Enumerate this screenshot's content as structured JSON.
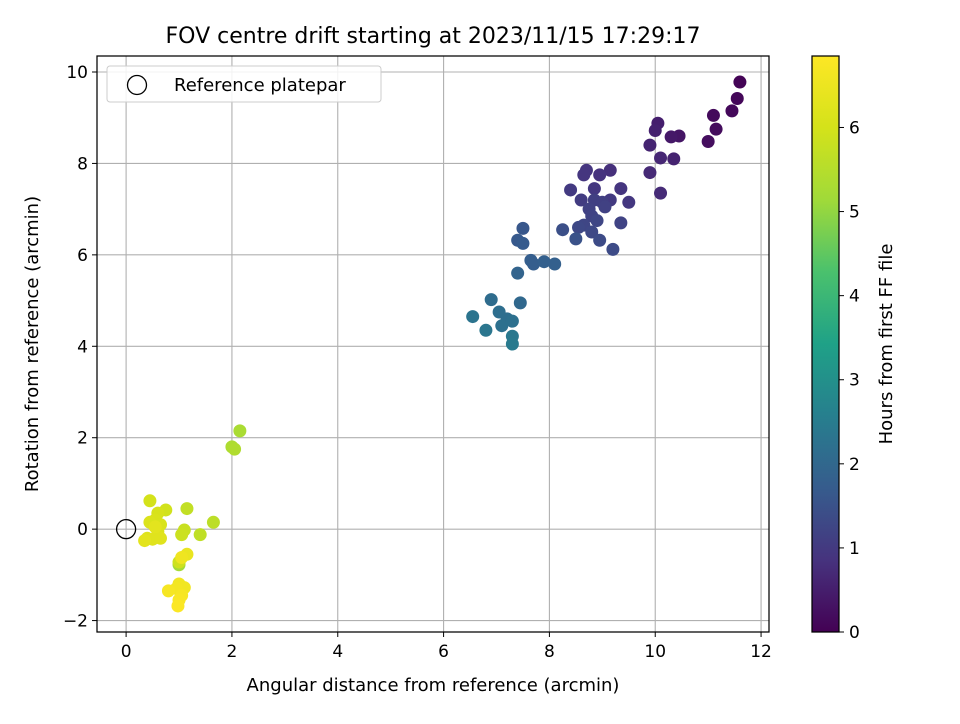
{
  "chart_data": {
    "type": "scatter",
    "title": "FOV centre drift starting at 2023/11/15 17:29:17",
    "xlabel": "Angular distance from reference (arcmin)",
    "ylabel": "Rotation from reference (arcmin)",
    "xlim": [
      -0.55,
      12.15
    ],
    "ylim": [
      -2.25,
      10.35
    ],
    "xticks": [
      0,
      2,
      4,
      6,
      8,
      10,
      12
    ],
    "yticks": [
      -2,
      0,
      2,
      4,
      6,
      8,
      10
    ],
    "grid": true,
    "legend": {
      "placement": "upper-left",
      "entries": [
        "Reference platepar"
      ]
    },
    "reference": {
      "x": 0,
      "y": 0,
      "label": "Reference platepar"
    },
    "colorbar": {
      "label": "Hours from first FF file",
      "range": [
        0,
        6.85
      ],
      "ticks": [
        0,
        1,
        2,
        3,
        4,
        5,
        6
      ],
      "colormap": "viridis"
    },
    "points": [
      [
        11.6,
        9.78,
        0.05
      ],
      [
        11.55,
        9.42,
        0.1
      ],
      [
        11.45,
        9.15,
        0.12
      ],
      [
        11.1,
        9.05,
        0.15
      ],
      [
        11.15,
        8.75,
        0.18
      ],
      [
        11.0,
        8.48,
        0.22
      ],
      [
        10.45,
        8.6,
        0.35
      ],
      [
        10.3,
        8.58,
        0.4
      ],
      [
        10.05,
        8.88,
        0.5
      ],
      [
        10.0,
        8.72,
        0.55
      ],
      [
        9.9,
        8.4,
        0.6
      ],
      [
        10.1,
        8.12,
        0.65
      ],
      [
        10.35,
        8.1,
        0.58
      ],
      [
        9.9,
        7.8,
        0.7
      ],
      [
        10.1,
        7.35,
        0.72
      ],
      [
        9.15,
        7.85,
        0.8
      ],
      [
        8.95,
        7.75,
        0.85
      ],
      [
        8.7,
        7.85,
        0.9
      ],
      [
        8.65,
        7.75,
        0.92
      ],
      [
        8.85,
        7.45,
        0.95
      ],
      [
        9.35,
        7.45,
        0.9
      ],
      [
        9.5,
        7.15,
        0.95
      ],
      [
        9.15,
        7.2,
        1.0
      ],
      [
        8.4,
        7.42,
        1.0
      ],
      [
        8.6,
        7.2,
        1.05
      ],
      [
        8.85,
        7.2,
        1.1
      ],
      [
        9.0,
        7.15,
        1.1
      ],
      [
        8.75,
        7.0,
        1.15
      ],
      [
        9.05,
        7.05,
        1.15
      ],
      [
        8.8,
        6.85,
        1.2
      ],
      [
        9.35,
        6.7,
        1.2
      ],
      [
        8.9,
        6.75,
        1.25
      ],
      [
        8.65,
        6.65,
        1.25
      ],
      [
        8.8,
        6.5,
        1.3
      ],
      [
        8.55,
        6.6,
        1.3
      ],
      [
        8.95,
        6.32,
        1.35
      ],
      [
        9.2,
        6.12,
        1.35
      ],
      [
        8.25,
        6.55,
        1.45
      ],
      [
        8.5,
        6.35,
        1.5
      ],
      [
        7.5,
        6.58,
        1.6
      ],
      [
        7.4,
        6.32,
        1.65
      ],
      [
        7.5,
        6.25,
        1.7
      ],
      [
        7.65,
        5.88,
        1.75
      ],
      [
        7.7,
        5.8,
        1.75
      ],
      [
        7.9,
        5.85,
        1.8
      ],
      [
        8.1,
        5.8,
        1.8
      ],
      [
        7.4,
        5.6,
        1.9
      ],
      [
        7.45,
        4.95,
        2.0
      ],
      [
        6.9,
        5.02,
        2.1
      ],
      [
        7.05,
        4.75,
        2.15
      ],
      [
        7.2,
        4.6,
        2.15
      ],
      [
        7.1,
        4.45,
        2.2
      ],
      [
        7.3,
        4.55,
        2.2
      ],
      [
        6.55,
        4.65,
        2.3
      ],
      [
        6.8,
        4.35,
        2.35
      ],
      [
        7.3,
        4.22,
        2.4
      ],
      [
        7.3,
        4.05,
        2.45
      ],
      [
        2.15,
        2.15,
        5.3
      ],
      [
        2.0,
        1.8,
        5.35
      ],
      [
        2.05,
        1.75,
        5.4
      ],
      [
        1.65,
        0.15,
        5.6
      ],
      [
        1.4,
        -0.12,
        5.65
      ],
      [
        1.15,
        0.45,
        5.7
      ],
      [
        1.1,
        -0.02,
        5.8
      ],
      [
        1.05,
        -0.12,
        5.85
      ],
      [
        1.0,
        -0.78,
        5.2
      ],
      [
        1.0,
        -0.72,
        5.9
      ],
      [
        0.75,
        0.42,
        5.95
      ],
      [
        0.45,
        0.62,
        6.0
      ],
      [
        0.6,
        0.35,
        6.05
      ],
      [
        0.55,
        0.2,
        6.1
      ],
      [
        0.65,
        0.1,
        6.1
      ],
      [
        0.45,
        0.15,
        6.15
      ],
      [
        0.6,
        -0.05,
        6.15
      ],
      [
        0.4,
        -0.2,
        6.2
      ],
      [
        0.5,
        -0.22,
        6.25
      ],
      [
        0.65,
        -0.2,
        6.25
      ],
      [
        0.35,
        -0.25,
        6.3
      ],
      [
        0.55,
        0.05,
        6.3
      ],
      [
        1.15,
        -0.55,
        6.45
      ],
      [
        1.05,
        -0.62,
        6.55
      ],
      [
        1.0,
        -1.2,
        6.6
      ],
      [
        1.1,
        -1.28,
        6.6
      ],
      [
        0.95,
        -1.3,
        6.65
      ],
      [
        0.8,
        -1.35,
        6.7
      ],
      [
        1.05,
        -1.45,
        6.7
      ],
      [
        1.0,
        -1.55,
        6.75
      ],
      [
        0.98,
        -1.68,
        6.8
      ]
    ]
  }
}
